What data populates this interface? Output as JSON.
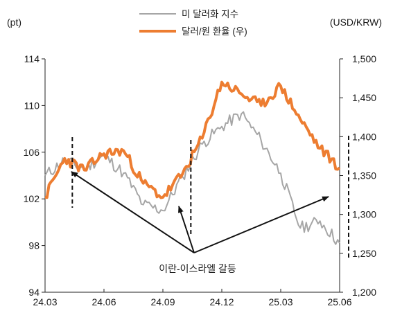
{
  "chart_data": {
    "type": "line",
    "left_unit": "(pt)",
    "right_unit": "(USD/KRW)",
    "x_categories": [
      "24.03",
      "24.06",
      "24.09",
      "24.12",
      "25.03",
      "25.06"
    ],
    "left_axis": {
      "ticks": [
        94,
        98,
        102,
        106,
        110,
        114
      ],
      "ylim": [
        94,
        114
      ]
    },
    "right_axis": {
      "ticks": [
        "1,200",
        "1,250",
        "1,300",
        "1,350",
        "1,400",
        "1,450",
        "1,500"
      ],
      "ylim": [
        1200,
        1500
      ]
    },
    "grid": false,
    "legend_position": "top-center",
    "series": [
      {
        "name": "미 달러화 지수",
        "axis": "left",
        "color": "#a6a6a6",
        "x": [
          "24.03",
          "24.04",
          "24.05",
          "24.06",
          "24.07",
          "24.08",
          "24.09",
          "24.10",
          "24.11",
          "24.12",
          "25.01",
          "25.02",
          "25.03",
          "25.04",
          "25.05",
          "25.06"
        ],
        "values": [
          104.0,
          105.3,
          104.6,
          105.7,
          104.2,
          101.5,
          101.0,
          103.9,
          106.7,
          108.2,
          109.3,
          107.0,
          104.2,
          99.5,
          100.1,
          98.2
        ]
      },
      {
        "name": "달러/원 환율 (우)",
        "axis": "right",
        "color": "#ed7d31",
        "x": [
          "24.03",
          "24.04",
          "24.05",
          "24.06",
          "24.07",
          "24.08",
          "24.09",
          "24.10",
          "24.11",
          "24.12",
          "25.01",
          "25.02",
          "25.03",
          "25.04",
          "25.05",
          "25.06"
        ],
        "values": [
          1322,
          1372,
          1357,
          1378,
          1382,
          1340,
          1322,
          1352,
          1398,
          1470,
          1455,
          1440,
          1465,
          1422,
          1385,
          1360
        ]
      }
    ],
    "annotation": {
      "text": "이란-이스라엘 갈등",
      "event_dates": [
        "24.04",
        "24.10",
        "25.06"
      ]
    }
  }
}
